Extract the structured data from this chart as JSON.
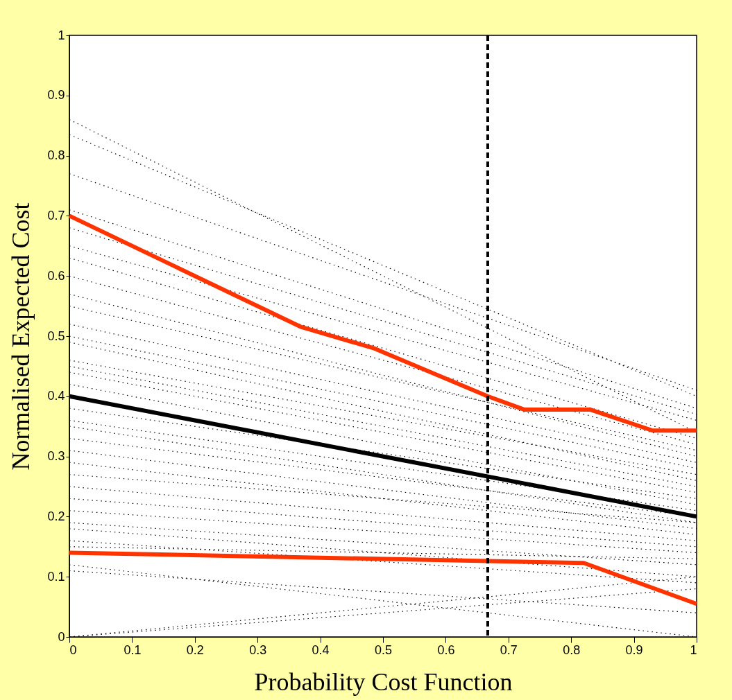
{
  "chart_data": {
    "type": "line",
    "xlabel": "Probability Cost Function",
    "ylabel": "Normalised Expected Cost",
    "xlim": [
      0,
      1
    ],
    "ylim": [
      0,
      1
    ],
    "xticks": [
      0,
      0.1,
      0.2,
      0.3,
      0.4,
      0.5,
      0.6,
      0.7,
      0.8,
      0.9,
      1
    ],
    "yticks": [
      0,
      0.1,
      0.2,
      0.3,
      0.4,
      0.5,
      0.6,
      0.7,
      0.8,
      0.9,
      1
    ],
    "grid": false,
    "marker": "none",
    "ref_lines": [
      {
        "axis": "x",
        "value": 0.667,
        "color": "#000000",
        "line_style": "dashed"
      }
    ],
    "series": [
      {
        "color": "#000000",
        "line_style": "dotted",
        "x": [
          0,
          1
        ],
        "values": [
          0.86,
          0.34
        ]
      },
      {
        "color": "#000000",
        "line_style": "dotted",
        "x": [
          0,
          1
        ],
        "values": [
          0.835,
          0.4
        ]
      },
      {
        "color": "#000000",
        "line_style": "dotted",
        "x": [
          0,
          1
        ],
        "values": [
          0.77,
          0.41
        ]
      },
      {
        "color": "#000000",
        "line_style": "dotted",
        "x": [
          0,
          1
        ],
        "values": [
          0.71,
          0.38
        ]
      },
      {
        "color": "#000000",
        "line_style": "dotted",
        "x": [
          0,
          1
        ],
        "values": [
          0.68,
          0.37
        ]
      },
      {
        "color": "#000000",
        "line_style": "dotted",
        "x": [
          0,
          1
        ],
        "values": [
          0.65,
          0.36
        ]
      },
      {
        "color": "#000000",
        "line_style": "dotted",
        "x": [
          0,
          1
        ],
        "values": [
          0.63,
          0.33
        ]
      },
      {
        "color": "#000000",
        "line_style": "dotted",
        "x": [
          0,
          1
        ],
        "values": [
          0.6,
          0.32
        ]
      },
      {
        "color": "#000000",
        "line_style": "dotted",
        "x": [
          0,
          1
        ],
        "values": [
          0.57,
          0.3
        ]
      },
      {
        "color": "#000000",
        "line_style": "dotted",
        "x": [
          0,
          1
        ],
        "values": [
          0.55,
          0.31
        ]
      },
      {
        "color": "#000000",
        "line_style": "dotted",
        "x": [
          0,
          1
        ],
        "values": [
          0.52,
          0.29
        ]
      },
      {
        "color": "#000000",
        "line_style": "dotted",
        "x": [
          0,
          1
        ],
        "values": [
          0.5,
          0.28
        ]
      },
      {
        "color": "#000000",
        "line_style": "dotted",
        "x": [
          0,
          1
        ],
        "values": [
          0.49,
          0.26
        ]
      },
      {
        "color": "#000000",
        "line_style": "dotted",
        "x": [
          0,
          1
        ],
        "values": [
          0.46,
          0.27
        ]
      },
      {
        "color": "#000000",
        "line_style": "dotted",
        "x": [
          0,
          1
        ],
        "values": [
          0.45,
          0.25
        ]
      },
      {
        "color": "#000000",
        "line_style": "dotted",
        "x": [
          0,
          1
        ],
        "values": [
          0.44,
          0.24
        ]
      },
      {
        "color": "#000000",
        "line_style": "dotted",
        "x": [
          0,
          1
        ],
        "values": [
          0.42,
          0.22
        ]
      },
      {
        "color": "#000000",
        "line_style": "dotted",
        "x": [
          0,
          1
        ],
        "values": [
          0.38,
          0.23
        ]
      },
      {
        "color": "#000000",
        "line_style": "dotted",
        "x": [
          0,
          1
        ],
        "values": [
          0.36,
          0.21
        ]
      },
      {
        "color": "#000000",
        "line_style": "dotted",
        "x": [
          0,
          1
        ],
        "values": [
          0.35,
          0.19
        ]
      },
      {
        "color": "#000000",
        "line_style": "dotted",
        "x": [
          0,
          1
        ],
        "values": [
          0.33,
          0.2
        ]
      },
      {
        "color": "#000000",
        "line_style": "dotted",
        "x": [
          0,
          1
        ],
        "values": [
          0.31,
          0.18
        ]
      },
      {
        "color": "#000000",
        "line_style": "dotted",
        "x": [
          0,
          1
        ],
        "values": [
          0.29,
          0.17
        ]
      },
      {
        "color": "#000000",
        "line_style": "dotted",
        "x": [
          0,
          1
        ],
        "values": [
          0.27,
          0.19
        ]
      },
      {
        "color": "#000000",
        "line_style": "dotted",
        "x": [
          0,
          1
        ],
        "values": [
          0.25,
          0.16
        ]
      },
      {
        "color": "#000000",
        "line_style": "dotted",
        "x": [
          0,
          1
        ],
        "values": [
          0.23,
          0.15
        ]
      },
      {
        "color": "#000000",
        "line_style": "dotted",
        "x": [
          0,
          1
        ],
        "values": [
          0.21,
          0.14
        ]
      },
      {
        "color": "#000000",
        "line_style": "dotted",
        "x": [
          0,
          1
        ],
        "values": [
          0.19,
          0.12
        ]
      },
      {
        "color": "#000000",
        "line_style": "dotted",
        "x": [
          0,
          1
        ],
        "values": [
          0.18,
          0.1
        ]
      },
      {
        "color": "#000000",
        "line_style": "dotted",
        "x": [
          0,
          1
        ],
        "values": [
          0.16,
          0.09
        ]
      },
      {
        "color": "#000000",
        "line_style": "dotted",
        "x": [
          0,
          1
        ],
        "values": [
          0.15,
          0.13
        ]
      },
      {
        "color": "#000000",
        "line_style": "dotted",
        "x": [
          0,
          1
        ],
        "values": [
          0.12,
          0.0
        ]
      },
      {
        "color": "#000000",
        "line_style": "dotted",
        "x": [
          0,
          1
        ],
        "values": [
          0.11,
          0.04
        ]
      },
      {
        "color": "#000000",
        "line_style": "dotted",
        "x": [
          0,
          1
        ],
        "values": [
          0.0,
          0.1
        ]
      },
      {
        "color": "#000000",
        "line_style": "dotted",
        "x": [
          0,
          1
        ],
        "values": [
          0.0,
          0.08
        ]
      },
      {
        "color": "#000000",
        "line_style": "solid",
        "x": [
          0,
          1
        ],
        "values": [
          0.4,
          0.2
        ]
      },
      {
        "color": "#ff3300",
        "line_style": "solid",
        "x": [
          0,
          0.37,
          0.485,
          0.667,
          0.725,
          0.83,
          0.93,
          1
        ],
        "values": [
          0.7,
          0.515,
          0.48,
          0.4,
          0.378,
          0.378,
          0.343,
          0.343
        ]
      },
      {
        "color": "#ff3300",
        "line_style": "solid",
        "x": [
          0,
          0.82,
          1
        ],
        "values": [
          0.14,
          0.123,
          0.055
        ]
      }
    ]
  }
}
